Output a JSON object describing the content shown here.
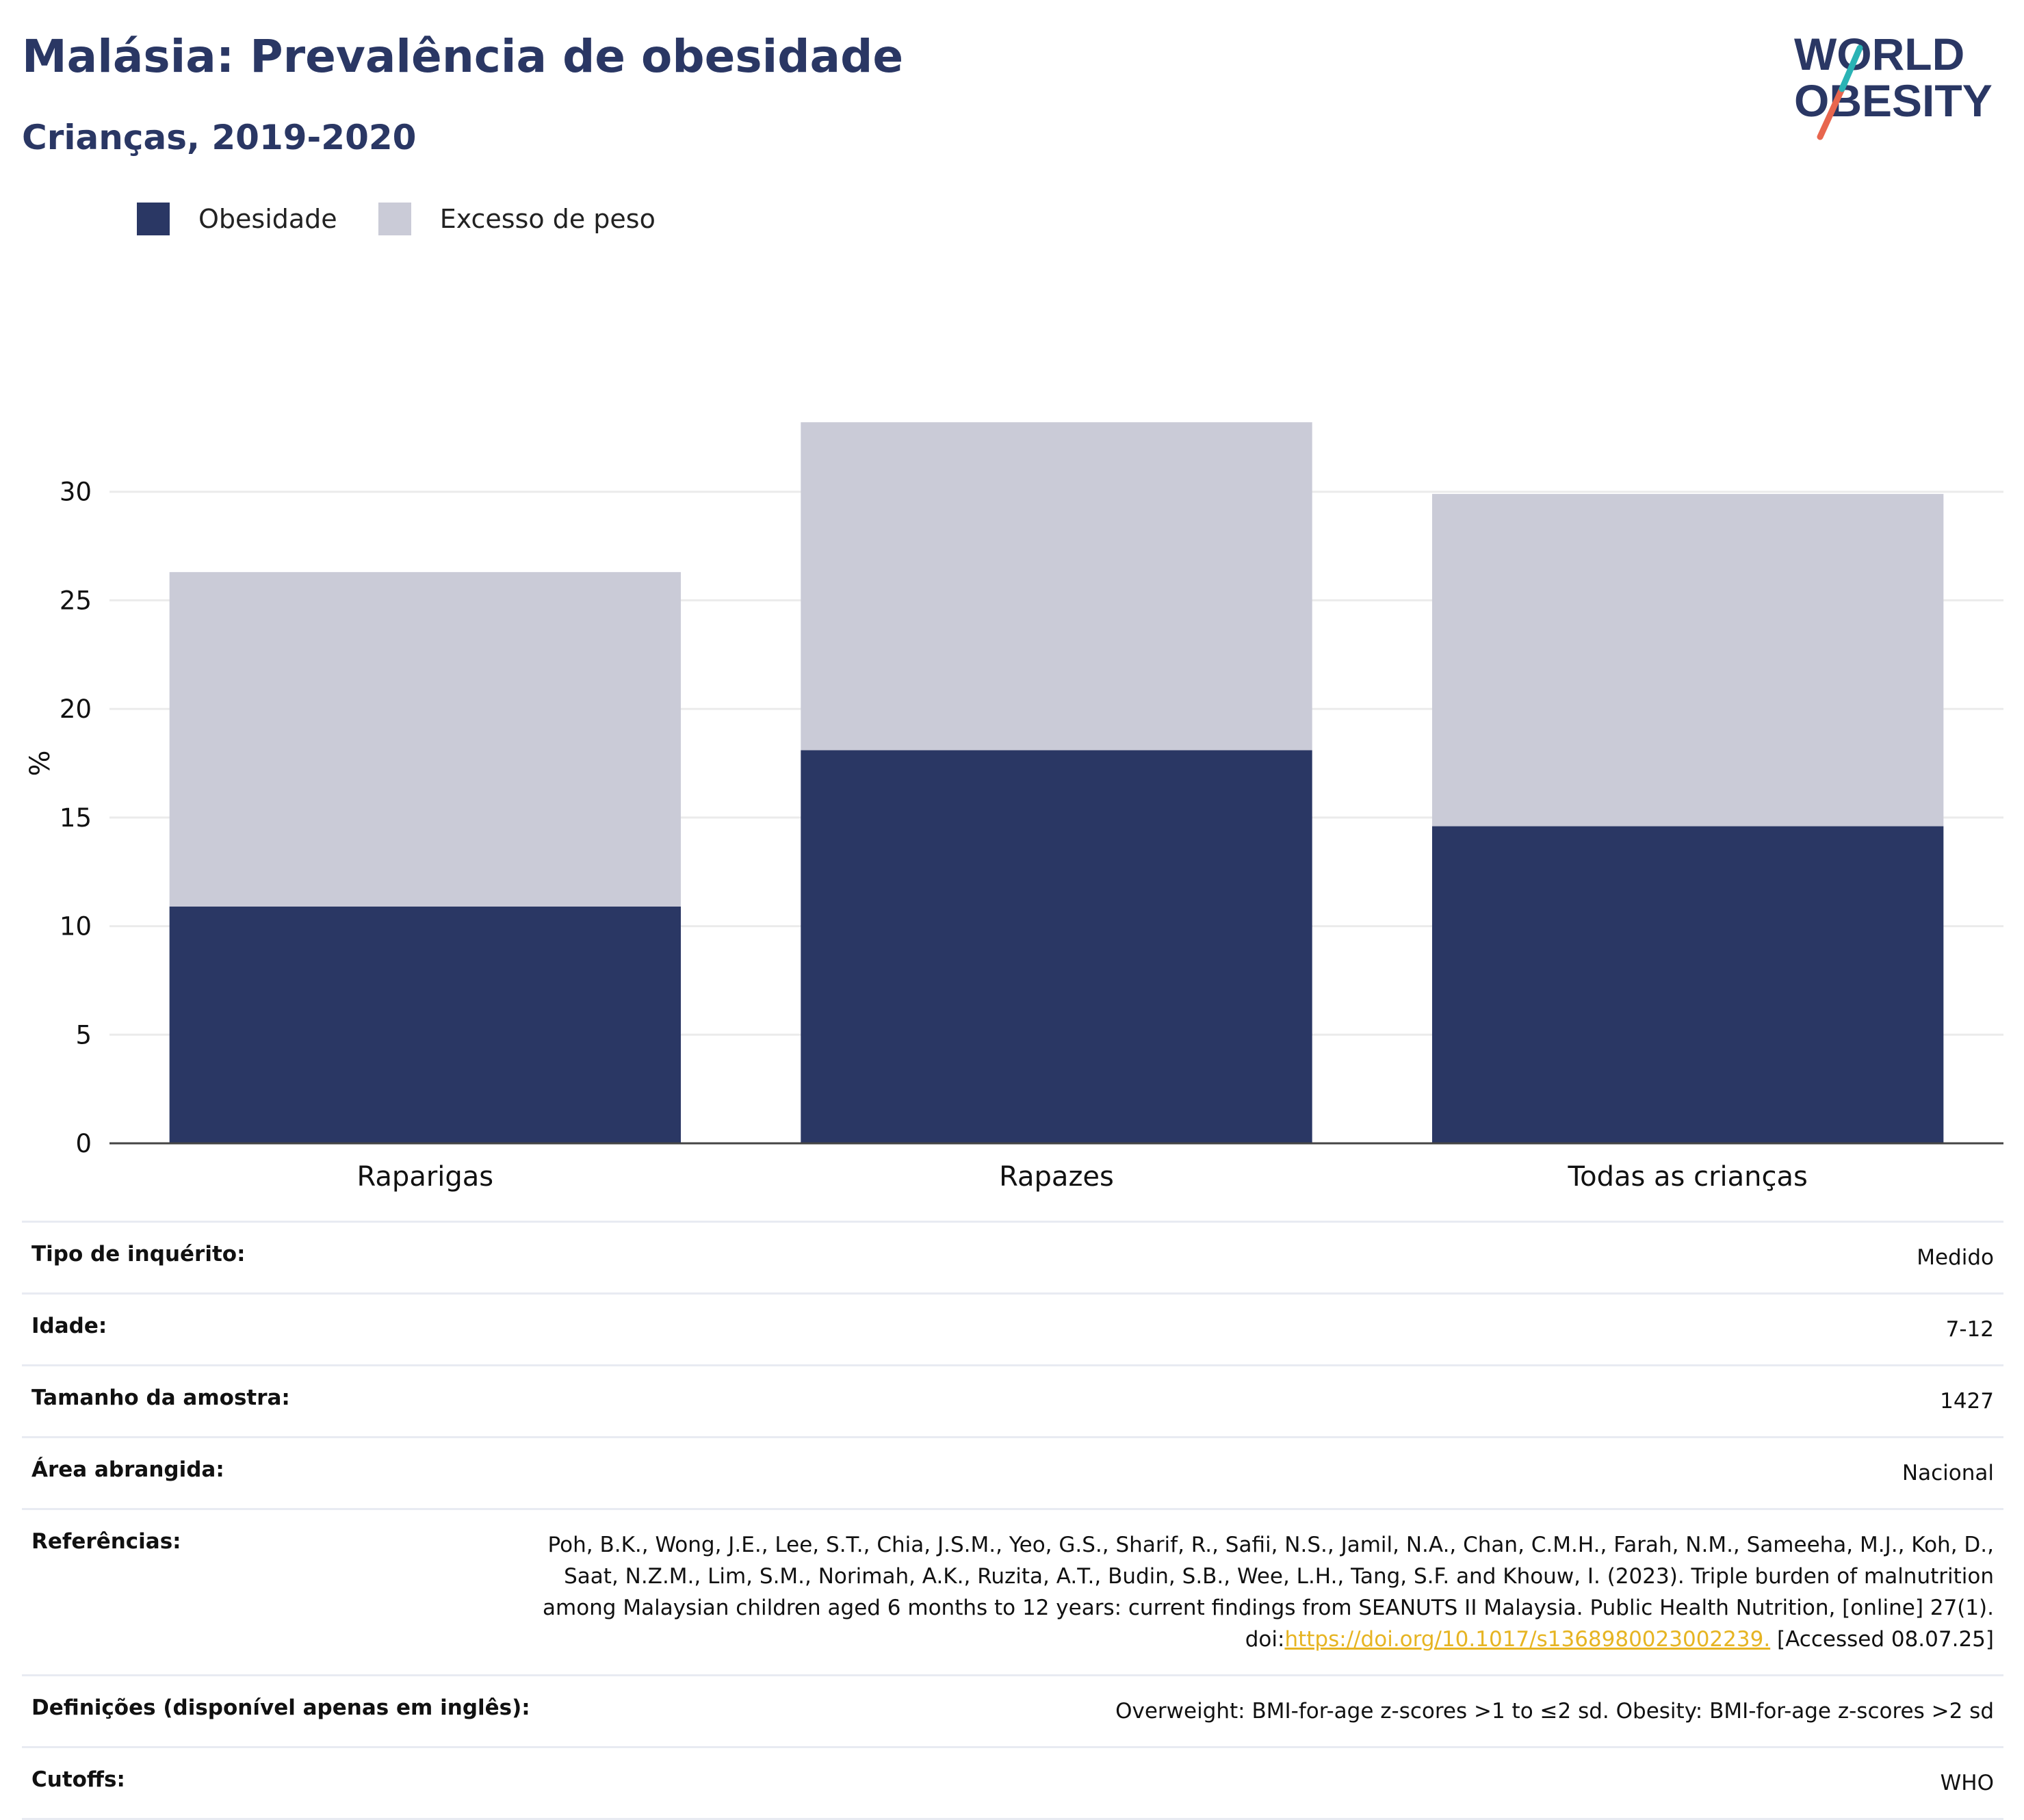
{
  "title": "Malásia: Prevalência de obesidade",
  "subtitle": "Crianças, 2019-2020",
  "logo": {
    "line1": "WORLD",
    "line2": "OBESITY"
  },
  "legend": [
    {
      "label": "Obesidade",
      "color": "#2a3764"
    },
    {
      "label": "Excesso de peso",
      "color": "#cacbd7"
    }
  ],
  "chart_data": {
    "type": "bar",
    "stacked": true,
    "categories": [
      "Raparigas",
      "Rapazes",
      "Todas as crianças"
    ],
    "series": [
      {
        "name": "Obesidade",
        "values": [
          10.9,
          18.1,
          14.6
        ],
        "color": "#2a3764"
      },
      {
        "name": "Excesso de peso",
        "values": [
          15.4,
          15.1,
          15.3
        ],
        "color": "#cacbd7"
      }
    ],
    "ylabel": "%",
    "ylim": [
      0,
      35
    ],
    "yticks": [
      0,
      5,
      10,
      15,
      20,
      25,
      30
    ],
    "grid": true,
    "legend_position": "top-left"
  },
  "info": {
    "survey_type": {
      "label": "Tipo de inquérito:",
      "value": "Medido"
    },
    "age": {
      "label": "Idade:",
      "value": "7-12"
    },
    "sample_size": {
      "label": "Tamanho da amostra:",
      "value": "1427"
    },
    "area": {
      "label": "Área abrangida:",
      "value": "Nacional"
    },
    "references": {
      "label": "Referências:",
      "text": "Poh, B.K., Wong, J.E., Lee, S.T., Chia, J.S.M., Yeo, G.S., Sharif, R., Safii, N.S., Jamil, N.A., Chan, C.M.H., Farah, N.M., Sameeha, M.J., Koh, D., Saat, N.Z.M., Lim, S.M., Norimah, A.K., Ruzita, A.T., Budin, S.B., Wee, L.H., Tang, S.F. and Khouw, I. (2023). Triple burden of malnutrition among Malaysian children aged 6 months to 12 years: current findings from SEANUTS II Malaysia. Public Health Nutrition, [online] 27(1). doi:",
      "link": "https://doi.org/10.1017/s1368980023002239.",
      "suffix": " [Accessed 08.07.25]"
    },
    "definitions": {
      "label": "Definições (disponível apenas em inglês):",
      "value": "Overweight: BMI-for-age z-scores >1 to ≤2 sd. Obesity: BMI-for-age z-scores >2 sd"
    },
    "cutoffs": {
      "label": "Cutoffs:",
      "value": "WHO"
    }
  }
}
